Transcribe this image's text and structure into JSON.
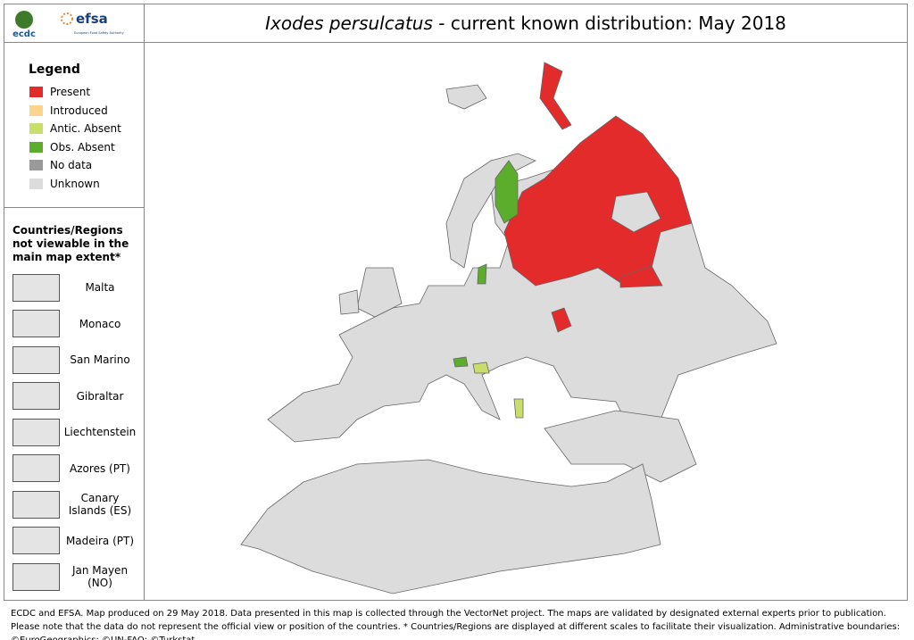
{
  "header": {
    "logos": [
      "ecdc",
      "efsa",
      "European Food Safety Authority"
    ],
    "title_species": "Ixodes persulcatus",
    "title_rest": " - current known distribution: May 2018"
  },
  "legend": {
    "title": "Legend",
    "items": [
      {
        "label": "Present",
        "color": "#e32b2b"
      },
      {
        "label": "Introduced",
        "color": "#fdd48b"
      },
      {
        "label": "Antic. Absent",
        "color": "#c9dd6b"
      },
      {
        "label": "Obs. Absent",
        "color": "#5cad2c"
      },
      {
        "label": "No data",
        "color": "#9a9a9a"
      },
      {
        "label": "Unknown",
        "color": "#dcdcdc"
      }
    ]
  },
  "insets": {
    "title": "Countries/Regions not viewable in the main map extent*",
    "items": [
      "Malta",
      "Monaco",
      "San Marino",
      "Gibraltar",
      "Liechtenstein",
      "Azores (PT)",
      "Canary Islands (ES)",
      "Madeira (PT)",
      "Jan Mayen (NO)"
    ]
  },
  "footer": "ECDC and EFSA. Map produced on 29 May 2018. Data presented in this map is collected through the VectorNet project. The maps are validated by designated external experts prior to publication. Please note that the data do not represent the official view or position of the countries. * Countries/Regions are displayed at different scales to facilitate their visualization. Administrative boundaries: ©EuroGeographics; ©UN-FAO; ©Turkstat."
}
